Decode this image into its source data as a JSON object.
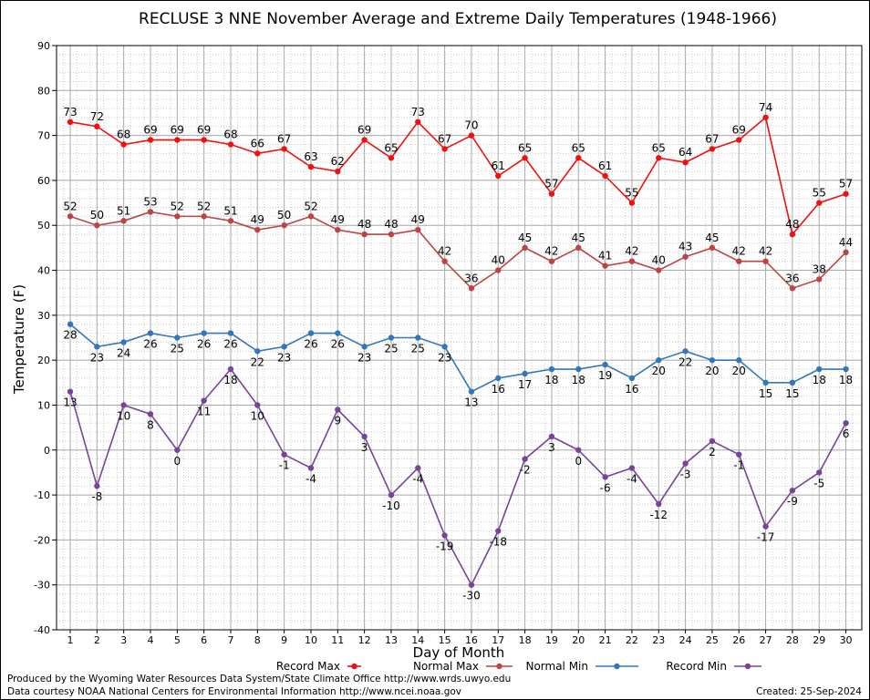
{
  "chart_data": {
    "type": "line",
    "title": "RECLUSE 3 NNE November Average and Extreme Daily Temperatures (1948-1966)",
    "xlabel": "Day of Month",
    "ylabel": "Temperature (F)",
    "ylim": [
      -40,
      90
    ],
    "yticks": [
      "-40",
      "-30",
      "-20",
      "-10",
      "0",
      "10",
      "20",
      "30",
      "40",
      "50",
      "60",
      "70",
      "80",
      "90"
    ],
    "grid": true,
    "legend_position": "bottom",
    "x": [
      "1",
      "2",
      "3",
      "4",
      "5",
      "6",
      "7",
      "8",
      "9",
      "10",
      "11",
      "12",
      "13",
      "14",
      "15",
      "16",
      "17",
      "18",
      "19",
      "20",
      "21",
      "22",
      "23",
      "24",
      "25",
      "26",
      "27",
      "28",
      "29",
      "30"
    ],
    "series": [
      {
        "name": "Record Max",
        "color": "#ee1111",
        "label_position": "above",
        "values": [
          73,
          72,
          68,
          69,
          69,
          69,
          68,
          66,
          67,
          63,
          62,
          69,
          65,
          73,
          67,
          70,
          61,
          65,
          57,
          65,
          61,
          55,
          65,
          64,
          67,
          69,
          74,
          48,
          55,
          57
        ]
      },
      {
        "name": "Normal Max",
        "color": "#bb4444",
        "label_position": "above",
        "values": [
          52,
          50,
          51,
          53,
          52,
          52,
          51,
          49,
          50,
          52,
          49,
          48,
          48,
          49,
          42,
          36,
          40,
          45,
          42,
          45,
          41,
          42,
          40,
          43,
          45,
          42,
          42,
          36,
          38,
          44
        ]
      },
      {
        "name": "Normal Min",
        "color": "#3377bb",
        "label_position": "below",
        "values": [
          28,
          23,
          24,
          26,
          25,
          26,
          26,
          22,
          23,
          26,
          26,
          23,
          25,
          25,
          23,
          13,
          16,
          17,
          18,
          18,
          19,
          16,
          20,
          22,
          20,
          20,
          15,
          15,
          18,
          18
        ]
      },
      {
        "name": "Record Min",
        "color": "#774499",
        "label_position": "below",
        "values": [
          13,
          -8,
          10,
          8,
          0,
          11,
          18,
          10,
          -1,
          -4,
          9,
          3,
          -10,
          -4,
          -19,
          -30,
          -18,
          -2,
          3,
          0,
          -6,
          -4,
          -12,
          -3,
          2,
          -1,
          -17,
          -9,
          -5,
          6
        ]
      }
    ]
  },
  "footer": {
    "produced_by": "Produced by the Wyoming Water Resources Data System/State Climate Office http://www.wrds.uwyo.edu",
    "courtesy": "Data courtesy NOAA National Centers for Environmental Information http://www.ncei.noaa.gov",
    "created": "Created:  25-Sep-2024"
  }
}
